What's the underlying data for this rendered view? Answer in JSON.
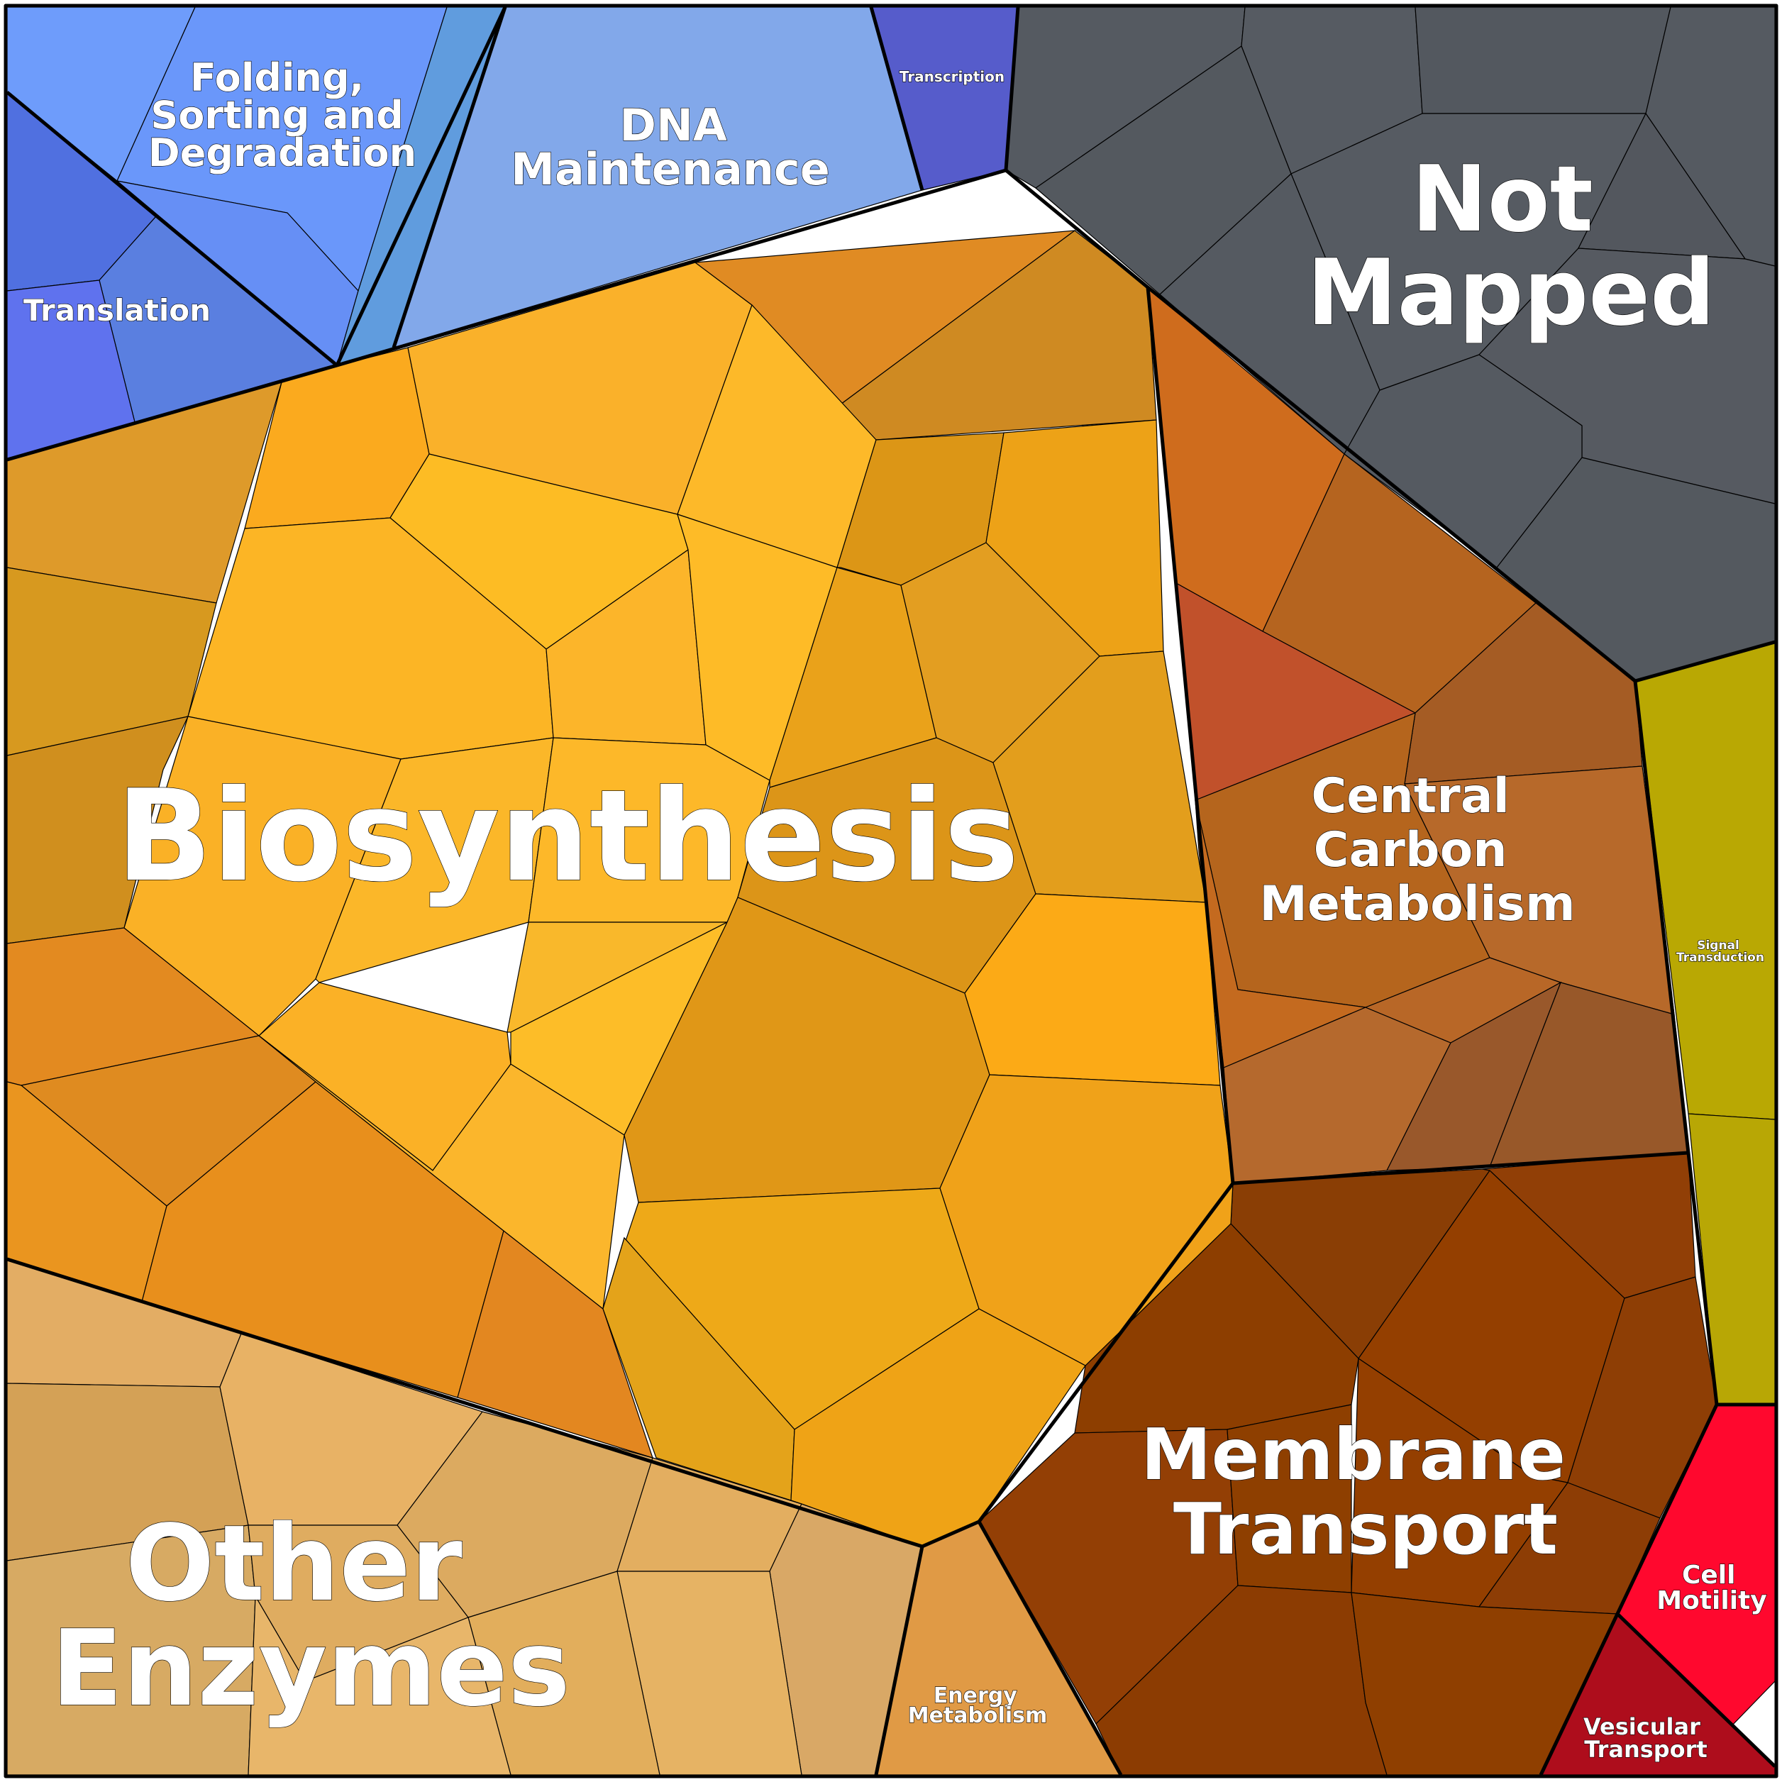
{
  "categories": [
    {
      "id": "biosynthesis",
      "label": [
        "Biosynthesis"
      ],
      "color": "#F5A623"
    },
    {
      "id": "not-mapped",
      "label": [
        "Not",
        "Mapped"
      ],
      "color": "#555A61"
    },
    {
      "id": "central-carbon-metabolism",
      "label": [
        "Central",
        "Carbon",
        "Metabolism"
      ],
      "color": "#B5651D"
    },
    {
      "id": "membrane-transport",
      "label": [
        "Membrane",
        "Transport"
      ],
      "color": "#933F00"
    },
    {
      "id": "other-enzymes",
      "label": [
        "Other",
        "Enzymes"
      ],
      "color": "#E0AE60"
    },
    {
      "id": "energy-metabolism",
      "label": [
        "Energy",
        "Metabolism"
      ],
      "color": "#E09A45"
    },
    {
      "id": "folding-sorting-degradation",
      "label": [
        "Folding,",
        "Sorting and",
        "Degradation"
      ],
      "color": "#6A97FA"
    },
    {
      "id": "dna-maintenance",
      "label": [
        "DNA",
        "Maintenance"
      ],
      "color": "#82A8EA"
    },
    {
      "id": "transcription",
      "label": [
        "Transcription"
      ],
      "color": "#565CCB"
    },
    {
      "id": "translation",
      "label": [
        "Translation"
      ],
      "color": "#5070E0"
    },
    {
      "id": "signal-transduction",
      "label": [
        "Signal",
        "Transduction"
      ],
      "color": "#B9A803"
    },
    {
      "id": "cell-motility",
      "label": [
        "Cell",
        "Motility"
      ],
      "color": "#FF082E"
    },
    {
      "id": "vesicular-transport",
      "label": [
        "Vesicular",
        "Transport"
      ],
      "color": "#AE0D1C"
    }
  ]
}
